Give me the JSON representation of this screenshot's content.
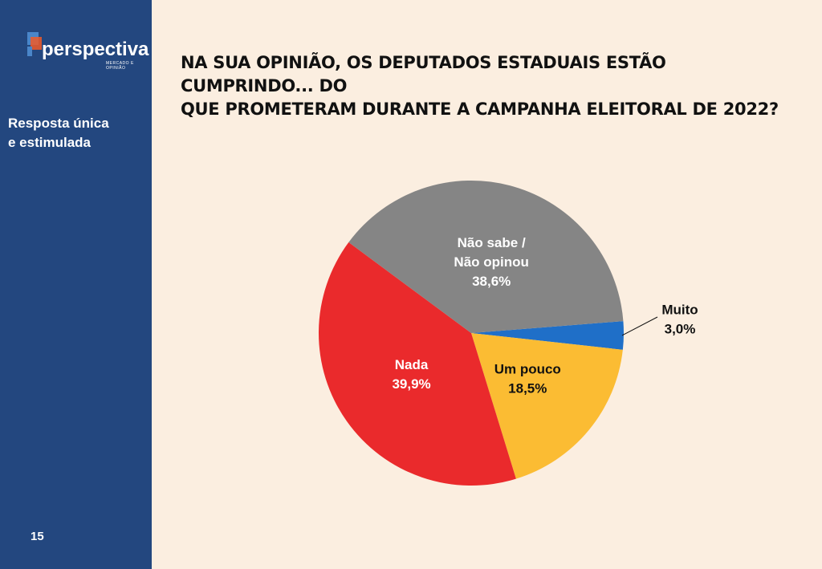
{
  "sidebar": {
    "logo_text": "perspectiva",
    "logo_tagline": "MERCADO E OPINIÃO",
    "subtitle_line1": "Resposta única",
    "subtitle_line2": "e estimulada",
    "page_number": "15",
    "background_color": "#23477f"
  },
  "header": {
    "title_line1": "NA SUA OPINIÃO, OS DEPUTADOS ESTADUAIS ESTÃO CUMPRINDO... DO",
    "title_line2": "QUE PROMETERAM DURANTE A CAMPANHA ELEITORAL DE 2022?"
  },
  "chart_data": {
    "type": "pie",
    "legend": "none",
    "slices": [
      {
        "label": "Muito",
        "value": 3.0,
        "value_label": "3,0%",
        "color": "#1f6fc8",
        "label_color": "#111111",
        "label_lines": [
          "Muito"
        ]
      },
      {
        "label": "Um pouco",
        "value": 18.5,
        "value_label": "18,5%",
        "color": "#fbbc33",
        "label_color": "#111111",
        "label_lines": [
          "Um pouco"
        ]
      },
      {
        "label": "Nada",
        "value": 39.9,
        "value_label": "39,9%",
        "color": "#ea2a2c",
        "label_color": "#ffffff",
        "label_lines": [
          "Nada"
        ]
      },
      {
        "label": "Não sabe / Não opinou",
        "value": 38.6,
        "value_label": "38,6%",
        "color": "#858585",
        "label_color": "#ffffff",
        "label_lines": [
          "Não sabe /",
          "Não opinou"
        ]
      }
    ]
  }
}
